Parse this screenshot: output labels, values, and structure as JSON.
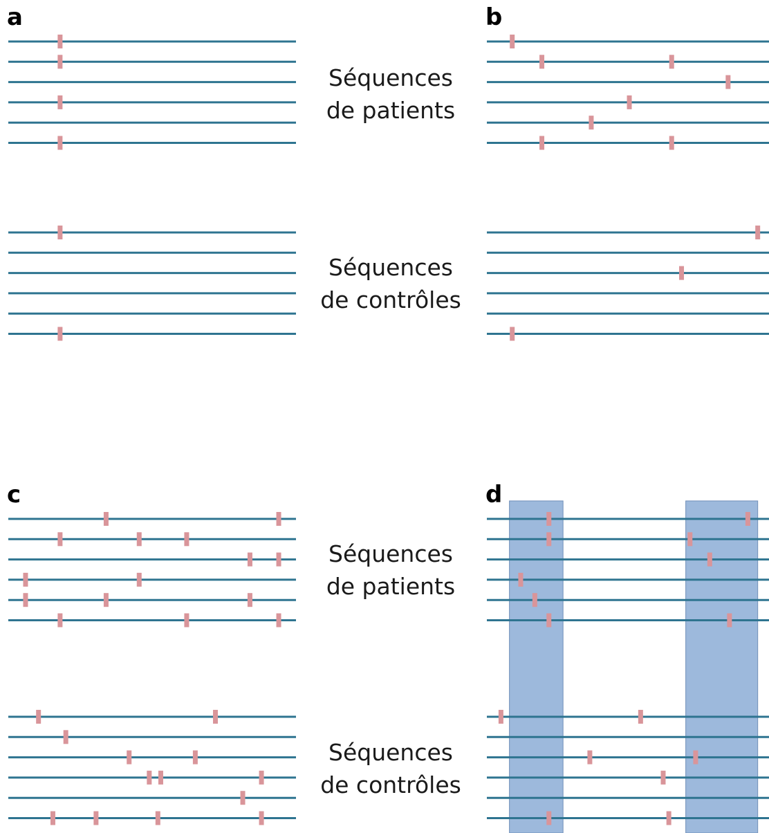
{
  "colors": {
    "line": "#2e7490",
    "mutation": "#d9959a",
    "highlight": "#9db9dc",
    "highlight_border": "#6f8eb8",
    "text": "#1a1a1a"
  },
  "labels": {
    "patients_line1": "Séquences",
    "patients_line2": "de patients",
    "controls_line1": "Séquences",
    "controls_line2": "de contrôles"
  },
  "panels": [
    {
      "letter": "a",
      "patients": [
        [
          0.18
        ],
        [
          0.18
        ],
        [],
        [
          0.18
        ],
        [],
        [
          0.18
        ]
      ],
      "controls": [
        [
          0.18
        ],
        [],
        [],
        [],
        [],
        [
          0.18
        ]
      ]
    },
    {
      "letter": "b",
      "patients": [
        [
          0.09
        ],
        [
          0.195,
          0.655
        ],
        [
          0.855
        ],
        [
          0.505
        ],
        [
          0.37
        ],
        [
          0.195,
          0.655
        ]
      ],
      "controls": [
        [
          0.96
        ],
        [],
        [
          0.69
        ],
        [],
        [],
        [
          0.09
        ]
      ]
    },
    {
      "letter": "c",
      "patients": [
        [
          0.34,
          0.94
        ],
        [
          0.18,
          0.455,
          0.62
        ],
        [
          0.84,
          0.94
        ],
        [
          0.06,
          0.455
        ],
        [
          0.06,
          0.34,
          0.84
        ],
        [
          0.18,
          0.62,
          0.94
        ]
      ],
      "controls": [
        [
          0.105,
          0.72
        ],
        [
          0.2
        ],
        [
          0.42,
          0.65
        ],
        [
          0.49,
          0.53,
          0.88
        ],
        [
          0.815
        ],
        [
          0.155,
          0.305,
          0.52,
          0.88
        ]
      ]
    },
    {
      "letter": "d",
      "highlight_regions": [
        [
          0.08,
          0.27
        ],
        [
          0.705,
          0.96
        ]
      ],
      "patients": [
        [
          0.22,
          0.925
        ],
        [
          0.22,
          0.72
        ],
        [
          0.79
        ],
        [
          0.12
        ],
        [
          0.17
        ],
        [
          0.22,
          0.86
        ]
      ],
      "controls": [
        [
          0.05,
          0.545
        ],
        [],
        [
          0.365,
          0.74
        ],
        [
          0.625
        ],
        [],
        [
          0.22,
          0.645
        ]
      ]
    }
  ]
}
